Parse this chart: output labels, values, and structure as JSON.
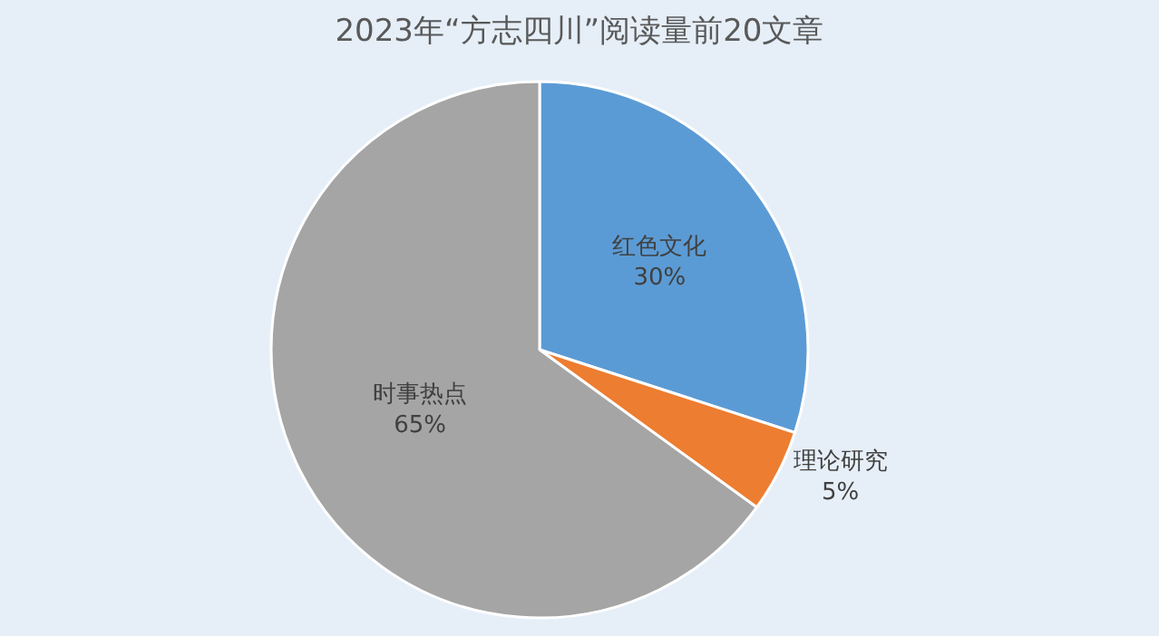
{
  "chart_data": {
    "type": "pie",
    "title": "2023年“方志四川”阅读量前20文章",
    "categories": [
      "红色文化",
      "理论研究",
      "时事热点"
    ],
    "values": [
      30,
      5,
      65
    ],
    "value_labels": [
      "30%",
      "5%",
      "65%"
    ],
    "colors": [
      "#5b9bd5",
      "#ed7d31",
      "#a5a5a5"
    ],
    "legend": false
  }
}
